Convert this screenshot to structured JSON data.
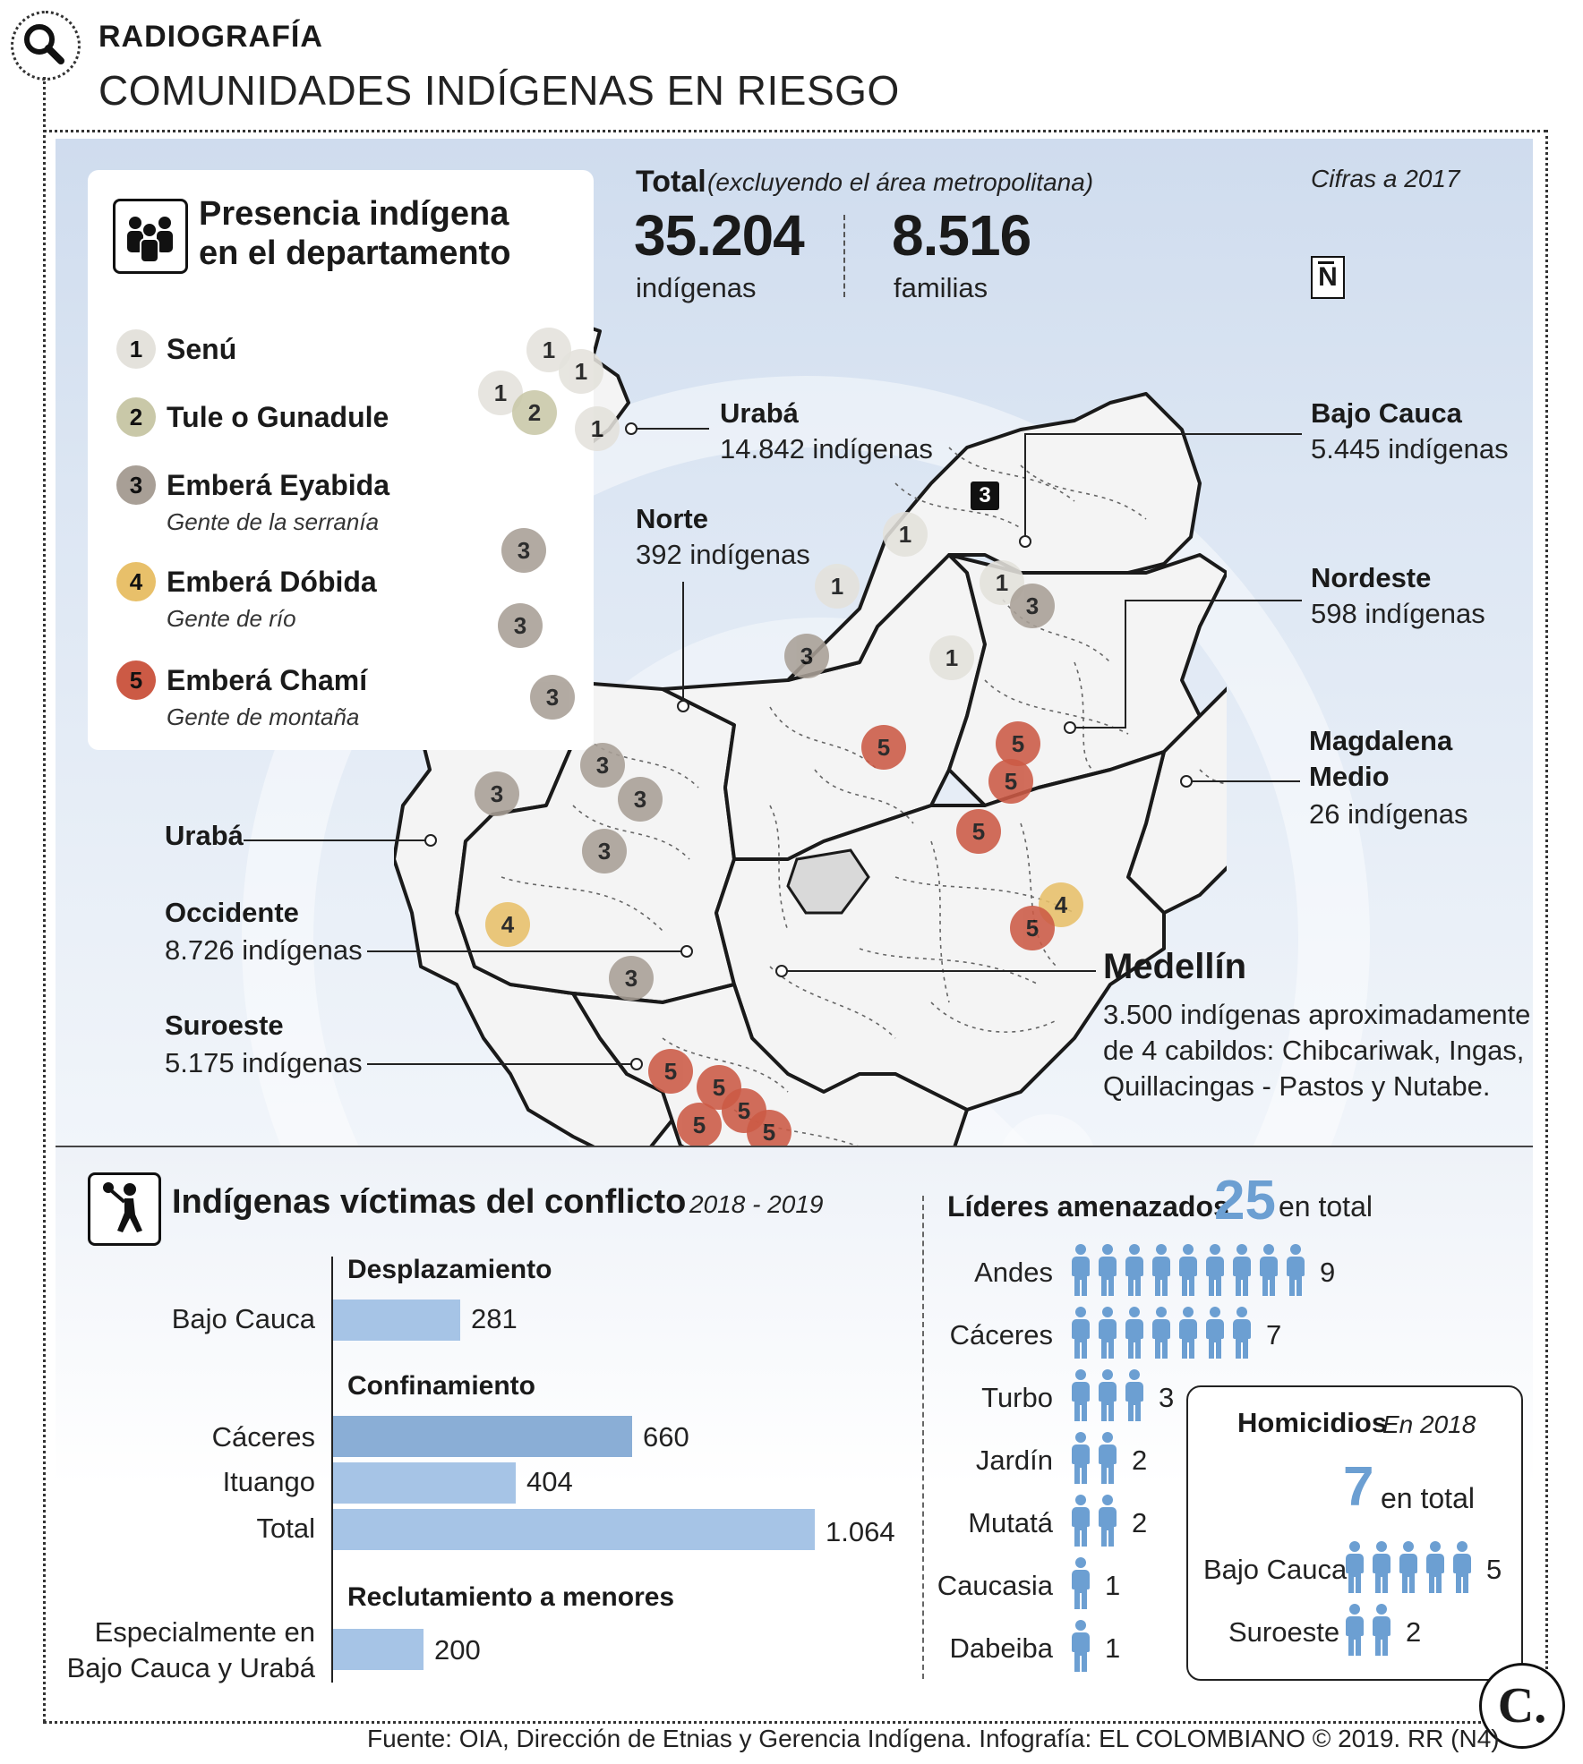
{
  "header": {
    "kicker": "RADIOGRAFÍA",
    "title": "COMUNIDADES INDÍGENAS EN RIESGO"
  },
  "legend": {
    "title_line1": "Presencia indígena",
    "title_line2": "en el departamento",
    "items": [
      {
        "num": "1",
        "name": "Senú",
        "sub": "",
        "color": "#e4e2dc"
      },
      {
        "num": "2",
        "name": "Tule o Gunadule",
        "sub": "",
        "color": "#c9c8a8"
      },
      {
        "num": "3",
        "name": "Emberá Eyabida",
        "sub": "Gente de la serranía",
        "color": "#a89f96"
      },
      {
        "num": "4",
        "name": "Emberá Dóbida",
        "sub": "Gente de río",
        "color": "#e8c06a"
      },
      {
        "num": "5",
        "name": "Emberá Chamí",
        "sub": "Gente de montaña",
        "color": "#cc5a45"
      }
    ]
  },
  "totals": {
    "label": "Total",
    "note": "(excluyendo el área metropolitana)",
    "indigenas_value": "35.204",
    "indigenas_label": "indígenas",
    "familias_value": "8.516",
    "familias_label": "familias",
    "cifras": "Cifras a 2017",
    "north": "N"
  },
  "regions": {
    "uraba_n": {
      "name": "Urabá",
      "value": "14.842  indígenas"
    },
    "bajo_cauca": {
      "name": "Bajo Cauca",
      "value": "5.445 indígenas"
    },
    "norte": {
      "name": "Norte",
      "value": "392 indígenas"
    },
    "nordeste": {
      "name": "Nordeste",
      "value": "598 indígenas"
    },
    "magdalena": {
      "name1": "Magdalena",
      "name2": "Medio",
      "value": "26  indígenas"
    },
    "uraba_w": {
      "name": "Urabá"
    },
    "occidente": {
      "name": "Occidente",
      "value": "8.726  indígenas"
    },
    "suroeste": {
      "name": "Suroeste",
      "value": "5.175  indígenas"
    },
    "medellin": {
      "name": "Medellín",
      "line1": "3.500 indígenas aproximadamente",
      "line2": "de 4 cabildos: Chibcariwak, Ingas,",
      "line3": "Quillacingas - Pastos y Nutabe."
    }
  },
  "map_markers": [
    "1",
    "1",
    "1",
    "2",
    "1",
    "3",
    "3",
    "3",
    "3",
    "3",
    "3",
    "3",
    "4",
    "3",
    "5",
    "5",
    "5",
    "5",
    "5",
    "1",
    "1",
    "3",
    "1",
    "1",
    "3",
    "1",
    "5",
    "5",
    "5",
    "5",
    "4",
    "5",
    "3"
  ],
  "victims": {
    "title": "Indígenas víctimas del conflicto",
    "period": "2018 - 2019",
    "sections": {
      "desplazamiento": "Desplazamiento",
      "confinamiento": "Confinamiento",
      "reclutamiento": "Reclutamiento a menores"
    },
    "bars": [
      {
        "cat": "Bajo Cauca",
        "value": 281,
        "label": "281"
      },
      {
        "cat": "Cáceres",
        "value": 660,
        "label": "660"
      },
      {
        "cat": "Ituango",
        "value": 404,
        "label": "404"
      },
      {
        "cat": "Total",
        "value": 1064,
        "label": "1.064"
      },
      {
        "cat1": "Especialmente en",
        "cat2": "Bajo Cauca y Urabá",
        "value": 200,
        "label": "200"
      }
    ]
  },
  "leaders": {
    "title": "Líderes amenazados",
    "total": "25",
    "total_suffix": "en total",
    "rows": [
      {
        "name": "Andes",
        "count": 9,
        "label": "9"
      },
      {
        "name": "Cáceres",
        "count": 7,
        "label": "7"
      },
      {
        "name": "Turbo",
        "count": 3,
        "label": "3"
      },
      {
        "name": "Jardín",
        "count": 2,
        "label": "2"
      },
      {
        "name": "Mutatá",
        "count": 2,
        "label": "2"
      },
      {
        "name": "Caucasia",
        "count": 1,
        "label": "1"
      },
      {
        "name": "Dabeiba",
        "count": 1,
        "label": "1"
      }
    ]
  },
  "homicides": {
    "title": "Homicidios",
    "year": "En 2018",
    "total": "7",
    "total_suffix": "en total",
    "rows": [
      {
        "name": "Bajo Cauca",
        "count": 5,
        "label": "5"
      },
      {
        "name": "Suroeste",
        "count": 2,
        "label": "2"
      }
    ]
  },
  "footer": {
    "source": "Fuente: OIA, Dirección de Etnias y Gerencia Indígena. Infografía: EL COLOMBIANO © 2019. RR (N4)",
    "logo": "C."
  }
}
